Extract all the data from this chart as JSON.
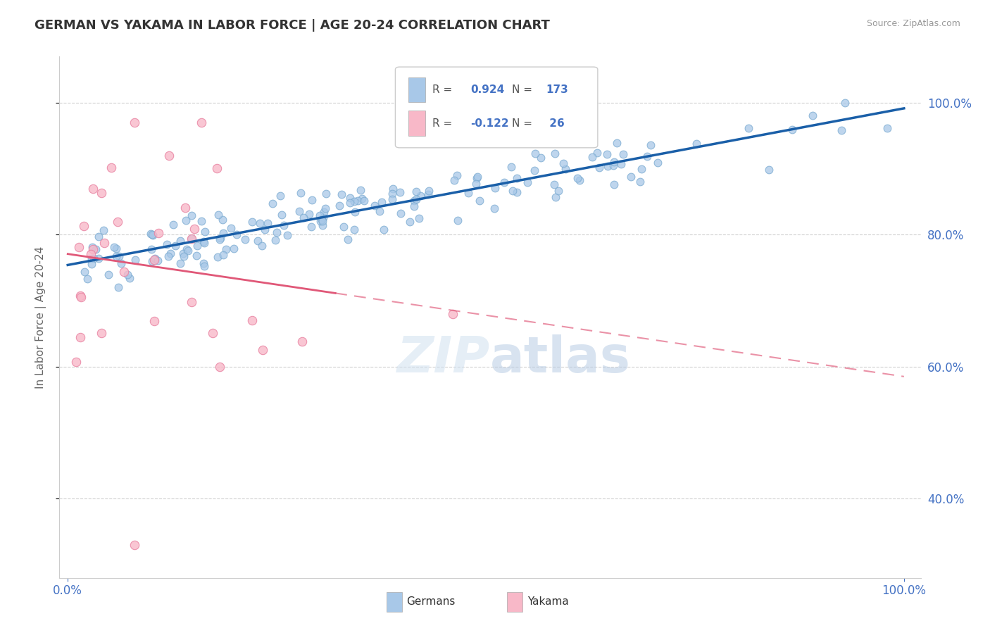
{
  "title": "GERMAN VS YAKAMA IN LABOR FORCE | AGE 20-24 CORRELATION CHART",
  "source": "Source: ZipAtlas.com",
  "ylabel": "In Labor Force | Age 20-24",
  "legend_labels": [
    "Germans",
    "Yakama"
  ],
  "german_R": 0.924,
  "german_N": 173,
  "yakama_R": -0.122,
  "yakama_N": 26,
  "blue_color": "#A8C8E8",
  "blue_edge_color": "#7AAAD0",
  "pink_color": "#F8B8C8",
  "pink_edge_color": "#E880A0",
  "blue_line_color": "#1A5FA8",
  "pink_line_color": "#E05878",
  "title_color": "#333333",
  "axis_label_color": "#4472C4",
  "background_color": "#FFFFFF",
  "grid_color": "#CCCCCC",
  "ytick_vals": [
    0.4,
    0.6,
    0.8,
    1.0
  ],
  "ytick_labels": [
    "40.0%",
    "60.0%",
    "80.0%",
    "100.0%"
  ],
  "xlim": [
    -0.01,
    1.02
  ],
  "ylim": [
    0.28,
    1.07
  ],
  "seed_german": 7,
  "seed_yakama": 13,
  "dot_size_german": 60,
  "dot_size_yakama": 80
}
